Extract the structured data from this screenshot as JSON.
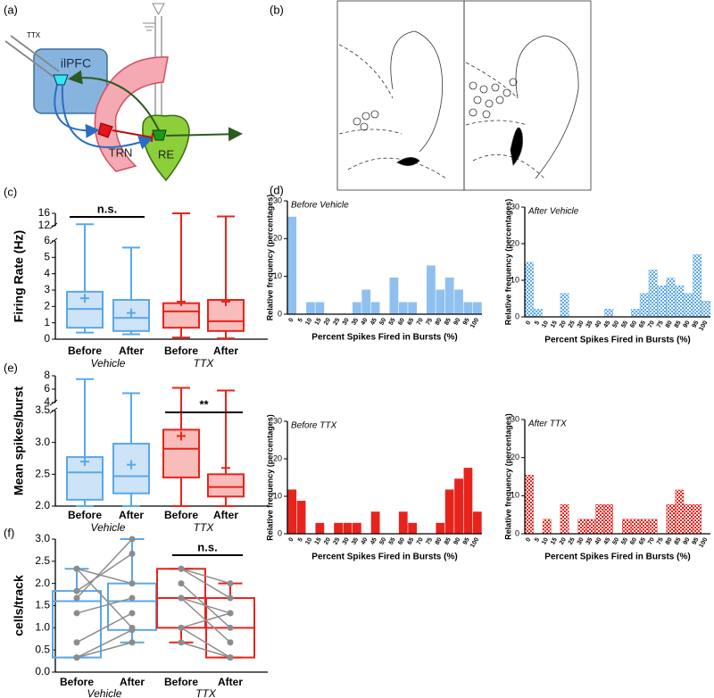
{
  "panel_labels": [
    "(a)",
    "(b)",
    "(c)",
    "(d)",
    "(e)",
    "(f)"
  ],
  "diagram": {
    "pipette_label": "TTX",
    "region_labels": [
      "ilPFC",
      "TRN",
      "RE"
    ]
  },
  "chart_data": [
    {
      "type": "box",
      "y_label": "Firing  Rate (Hz)",
      "categories": [
        "Before",
        "After",
        "Before",
        "After"
      ],
      "groups": [
        {
          "name": "Vehicle",
          "color": "#5aa7e8"
        },
        {
          "name": "TTX",
          "color": "#e8231c"
        }
      ],
      "box_fill": true,
      "boxes": [
        {
          "min": 0.4,
          "q1": 0.7,
          "median": 1.85,
          "q3": 2.9,
          "max": 12.5,
          "mean": 2.5
        },
        {
          "min": 0.3,
          "q1": 0.5,
          "median": 1.3,
          "q3": 2.4,
          "max": 5.6,
          "mean": 1.6
        },
        {
          "min": 0.1,
          "q1": 0.7,
          "median": 1.7,
          "q3": 2.2,
          "max": 16,
          "mean": 2.3
        },
        {
          "min": 0.05,
          "q1": 0.5,
          "median": 1.1,
          "q3": 2.4,
          "max": 15,
          "mean": 2.3
        }
      ],
      "ylim": [
        0,
        16
      ],
      "axis_break": [
        6,
        12
      ],
      "yticks": [
        0,
        1,
        2,
        3,
        4,
        5,
        6,
        12,
        16
      ],
      "annotation": "n.s."
    },
    {
      "type": "histogram",
      "subtitle": "Before Vehicle",
      "y_label": "Relative frequency (percentages)",
      "x_label": "Percent Spikes Fired in Bursts (%)",
      "categories": [
        "0",
        "5",
        "10",
        "15",
        "20",
        "25",
        "30",
        "35",
        "40",
        "45",
        "50",
        "55",
        "60",
        "65",
        "70",
        "75",
        "80",
        "85",
        "90",
        "95",
        "100"
      ],
      "values": [
        25.8,
        0,
        3.2,
        3.2,
        0,
        0,
        0,
        3.2,
        6.5,
        3.2,
        0,
        9.7,
        3.2,
        3.2,
        0,
        12.9,
        6.5,
        9.7,
        6.5,
        3.2,
        3.2
      ],
      "color": "#8fc0f0",
      "pattern": "solid",
      "ylim": [
        0,
        30
      ],
      "yticks": [
        0,
        10,
        20,
        30
      ]
    },
    {
      "type": "histogram",
      "subtitle": "After Vehicle",
      "y_label": "Relative frequency (percentages)",
      "x_label": "Percent Spikes Fired in Bursts (%)",
      "categories": [
        "0",
        "5",
        "10",
        "15",
        "20",
        "25",
        "30",
        "35",
        "40",
        "45",
        "50",
        "55",
        "60",
        "65",
        "70",
        "75",
        "80",
        "85",
        "90",
        "95",
        "100"
      ],
      "values": [
        14.9,
        2.1,
        0,
        0,
        6.4,
        0,
        0,
        0,
        0,
        2.1,
        0,
        0,
        2.1,
        6.4,
        12.8,
        8.5,
        10.6,
        8.5,
        6.4,
        17,
        4.3
      ],
      "color": "#5aa7e8",
      "pattern": "checker",
      "ylim": [
        0,
        30
      ],
      "yticks": [
        0,
        10,
        20,
        30
      ]
    },
    {
      "type": "histogram",
      "subtitle": "Before TTX",
      "y_label": "Relative frequency (percentages)",
      "x_label": "Percent Spikes Fired in Bursts (%)",
      "categories": [
        "0",
        "5",
        "10",
        "15",
        "20",
        "25",
        "30",
        "35",
        "40",
        "45",
        "50",
        "55",
        "60",
        "65",
        "70",
        "75",
        "80",
        "85",
        "90",
        "95",
        "100"
      ],
      "values": [
        11.8,
        8.8,
        0,
        2.9,
        0,
        2.9,
        2.9,
        2.9,
        0,
        5.9,
        0,
        0,
        5.9,
        2.9,
        0,
        0,
        2.9,
        11.8,
        14.7,
        17.6,
        5.9
      ],
      "color": "#e8231c",
      "pattern": "solid",
      "ylim": [
        0,
        30
      ],
      "yticks": [
        0,
        10,
        20,
        30
      ]
    },
    {
      "type": "histogram",
      "subtitle": "After TTX",
      "y_label": "Relative frequency (percentages)",
      "x_label": "Percent Spikes Fired in Bursts (%)",
      "categories": [
        "0",
        "5",
        "10",
        "15",
        "20",
        "25",
        "30",
        "35",
        "40",
        "45",
        "50",
        "55",
        "60",
        "65",
        "70",
        "75",
        "80",
        "85",
        "90",
        "95",
        "100"
      ],
      "values": [
        15.4,
        0,
        3.8,
        0,
        7.7,
        0,
        3.8,
        3.8,
        7.7,
        7.7,
        0,
        3.8,
        3.8,
        3.8,
        3.8,
        0,
        7.7,
        11.5,
        7.7,
        7.7,
        0
      ],
      "color": "#e8231c",
      "pattern": "checker",
      "ylim": [
        0,
        30
      ],
      "yticks": [
        0,
        10,
        20,
        30
      ]
    },
    {
      "type": "box",
      "y_label": "Mean spikes/burst",
      "categories": [
        "Before",
        "After",
        "Before",
        "After"
      ],
      "groups": [
        {
          "name": "Vehicle",
          "color": "#5aa7e8"
        },
        {
          "name": "TTX",
          "color": "#e8231c"
        }
      ],
      "box_fill": true,
      "boxes": [
        {
          "min": 2.0,
          "q1": 2.1,
          "median": 2.53,
          "q3": 2.77,
          "max": 7.5,
          "mean": 2.7
        },
        {
          "min": 2.0,
          "q1": 2.2,
          "median": 2.47,
          "q3": 2.98,
          "max": 5.4,
          "mean": 2.65
        },
        {
          "min": 2.0,
          "q1": 2.45,
          "median": 2.9,
          "q3": 3.2,
          "max": 6.2,
          "mean": 3.1
        },
        {
          "min": 2.0,
          "q1": 2.15,
          "median": 2.3,
          "q3": 2.5,
          "max": 5.8,
          "mean": 2.6
        }
      ],
      "ylim": [
        2,
        8
      ],
      "axis_break": [
        3.5,
        4
      ],
      "yticks": [
        {
          "value": 2,
          "label": "2.0"
        },
        2.5,
        {
          "value": 3,
          "label": "3.0"
        },
        3.5,
        4,
        6,
        8
      ],
      "annotation": "**"
    },
    {
      "type": "box",
      "y_label": "cells/track",
      "categories": [
        "Before",
        "After",
        "Before",
        "After"
      ],
      "groups": [
        {
          "name": "Vehicle",
          "color": "#5aa7e8"
        },
        {
          "name": "TTX",
          "color": "#e8231c"
        }
      ],
      "box_fill": false,
      "point_color": "#8c8c8c",
      "boxes": [
        {
          "min": 0.33,
          "q1": 0.33,
          "median": 1.6,
          "q3": 1.83,
          "max": 2.33
        },
        {
          "min": 0.67,
          "q1": 0.95,
          "median": 1.6,
          "q3": 2.0,
          "max": 3.0
        },
        {
          "min": 0.67,
          "q1": 1.0,
          "median": 1.67,
          "q3": 2.33,
          "max": 2.33
        },
        {
          "min": 0.33,
          "q1": 0.33,
          "median": 1.0,
          "q3": 1.67,
          "max": 2.0
        }
      ],
      "points": [
        [
          2.33,
          2.33,
          1.83,
          1.67,
          1.33,
          0.67,
          0.33,
          0.33
        ],
        [
          1.0,
          2.0,
          2.67,
          3.0,
          1.67,
          1.33,
          0.67,
          0.95
        ],
        [
          2.33,
          2.33,
          2.0,
          1.67,
          1.67,
          1.0,
          1.0,
          0.67
        ],
        [
          2.0,
          1.67,
          1.0,
          1.33,
          0.67,
          0.33,
          1.33,
          0.33
        ]
      ],
      "ylim": [
        0,
        3
      ],
      "yticks": [
        {
          "value": 0,
          "label": "0.0"
        },
        0.5,
        {
          "value": 1,
          "label": "1.0"
        },
        1.5,
        {
          "value": 2,
          "label": "2.0"
        },
        2.5,
        {
          "value": 3,
          "label": "3.0"
        }
      ],
      "annotation": "n.s."
    }
  ]
}
